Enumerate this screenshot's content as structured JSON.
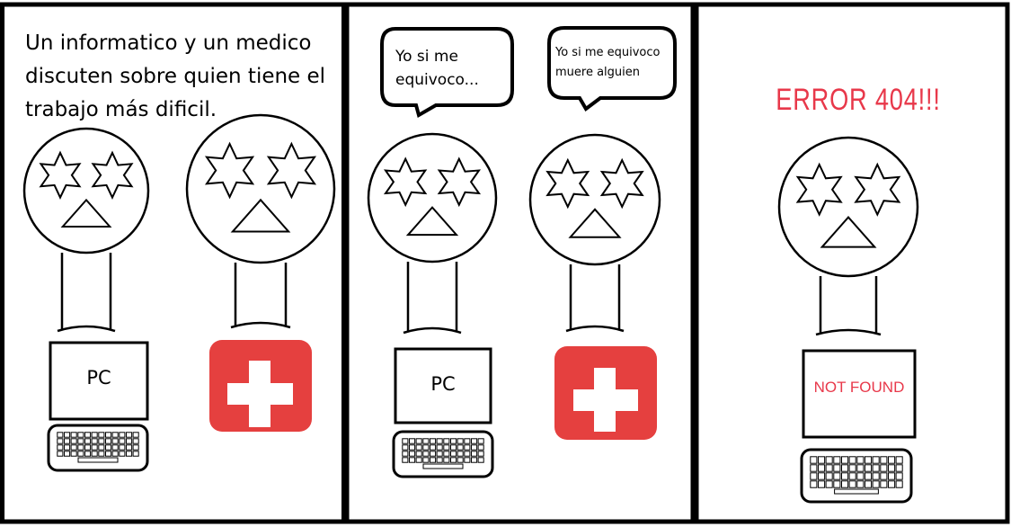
{
  "panel1": {
    "caption_lines": [
      "Un informatico y un medico",
      "discuten sobre quien tiene el",
      "trabajo más dificil."
    ],
    "pc_label": "PC"
  },
  "panel2": {
    "bubble_left_lines": [
      "Yo si me",
      "equivoco..."
    ],
    "bubble_right_lines": [
      "Yo si me equivoco",
      "muere alguien"
    ],
    "pc_label": "PC"
  },
  "panel3": {
    "error_title": "ERROR 404!!!",
    "screen_text": "NOT FOUND"
  },
  "icons": [
    "star-icon",
    "medical-cross-icon",
    "laptop-icon",
    "keyboard-icon"
  ],
  "colors": {
    "outline": "#000000",
    "medical_red": "#e5403f",
    "error_red": "#e8384a"
  }
}
